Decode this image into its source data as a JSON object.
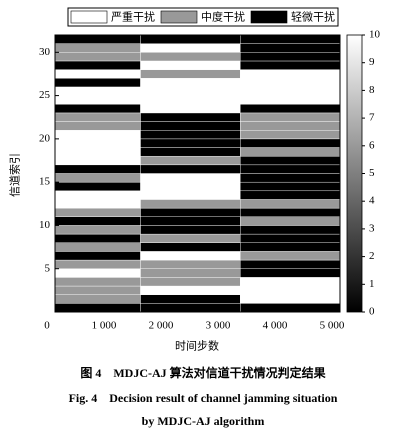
{
  "chart_data": {
    "type": "heatmap",
    "xlabel": "时间步数",
    "ylabel": "信道索引",
    "xbins": [
      0,
      1500,
      3250,
      5000
    ],
    "xlim": [
      0,
      5000
    ],
    "xticks": [
      0,
      {
        "value": 1000,
        "label": "1 000"
      },
      {
        "value": 2000,
        "label": "2 000"
      },
      {
        "value": 3000,
        "label": "3 000"
      },
      {
        "value": 4000,
        "label": "4 000"
      },
      {
        "value": 5000,
        "label": "5 000"
      }
    ],
    "ylim": [
      0,
      32
    ],
    "yticks": [
      5,
      10,
      15,
      20,
      25,
      30
    ],
    "z": [
      [
        0,
        6,
        6,
        6,
        10,
        6,
        0,
        6,
        0,
        6,
        0,
        6,
        10,
        10,
        0,
        6,
        0,
        10,
        10,
        10,
        10,
        6,
        6,
        0,
        10,
        10,
        0,
        10,
        0,
        6,
        6,
        0
      ],
      [
        0,
        0,
        10,
        6,
        6,
        6,
        10,
        0,
        6,
        0,
        0,
        0,
        6,
        10,
        10,
        10,
        0,
        6,
        0,
        0,
        0,
        0,
        0,
        10,
        10,
        10,
        10,
        6,
        10,
        6,
        10,
        0
      ],
      [
        0,
        10,
        10,
        10,
        0,
        0,
        6,
        0,
        0,
        0,
        6,
        0,
        6,
        0,
        0,
        0,
        0,
        0,
        6,
        0,
        6,
        6,
        6,
        0,
        10,
        10,
        10,
        10,
        0,
        0,
        0,
        0
      ]
    ],
    "clim": [
      0,
      10
    ],
    "cticks": [
      0,
      1,
      2,
      3,
      4,
      5,
      6,
      7,
      8,
      9,
      10
    ],
    "legend": [
      {
        "name": "严重干扰",
        "value": 10
      },
      {
        "name": "中度干扰",
        "value": 6
      },
      {
        "name": "轻微干扰",
        "value": 0
      }
    ],
    "caption": [
      "图 4　MDJC-AJ 算法对信道干扰情况判定结果",
      "Fig. 4　Decision result of channel jamming situation",
      "by MDJC-AJ algorithm"
    ]
  }
}
